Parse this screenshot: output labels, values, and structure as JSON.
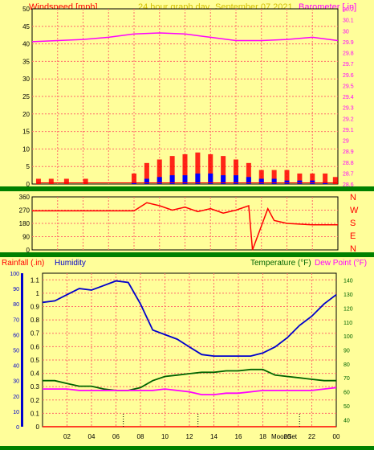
{
  "header": {
    "left_label": "Windspeed [mph]",
    "title": "24 hour graph day",
    "date": "September 07 2021",
    "right_label": "Barometer [.in]"
  },
  "colors": {
    "frame": "#008000",
    "plot_bg": "#fffe9a",
    "grid": "#ff6a6a",
    "wind_gust": "#ff0000",
    "wind_avg": "#0000ff",
    "wind_low": "#008000",
    "barometer": "#ff00ff",
    "direction": "#ff0000",
    "temperature": "#006400",
    "humidity": "#0000cc",
    "dew_point": "#ff00ff",
    "rainfall": "#ff0000",
    "title_gold": "#d4c000"
  },
  "bottom_header": {
    "rain_label": "Rainfall (.in)",
    "humidity_label": "Humidity",
    "temp_label": "Temperature (°F)",
    "dew_label": "Dew Point (°F)"
  },
  "compass": [
    "N",
    "W",
    "S",
    "E",
    "N"
  ],
  "x_markers": [
    "Moon",
    "Set"
  ],
  "chart_data": [
    {
      "type": "line",
      "panel": "wind-and-barometer",
      "xticks": [
        "02",
        "04",
        "06",
        "08",
        "10",
        "12",
        "14",
        "16",
        "18",
        "20",
        "22",
        "00"
      ],
      "ylim_left": [
        0,
        50
      ],
      "yticks_left": [
        "0",
        "5",
        "10",
        "15",
        "20",
        "25",
        "30",
        "35",
        "40",
        "45",
        "50"
      ],
      "ylim_right": [
        28.6,
        30.2
      ],
      "yticks_right": [
        "28.6",
        "28.7",
        "28.8",
        "28.9",
        "29",
        "29.1",
        "29.2",
        "29.3",
        "29.4",
        "29.5",
        "29.6",
        "29.7",
        "29.8",
        "29.9",
        "30",
        "30.1",
        "30.2"
      ],
      "barometer": {
        "hours": [
          0,
          2,
          4,
          6,
          8,
          10,
          12,
          14,
          16,
          18,
          20,
          22,
          24
        ],
        "values": [
          29.9,
          29.91,
          29.92,
          29.94,
          29.97,
          29.98,
          29.97,
          29.94,
          29.91,
          29.91,
          29.92,
          29.94,
          29.91
        ]
      },
      "wind_gust": {
        "hours": [
          0.5,
          1.5,
          2.7,
          4.2,
          8.0,
          9.0,
          10.0,
          11.0,
          12.0,
          13.0,
          14.0,
          15.0,
          16.0,
          17.0,
          18.0,
          19.0,
          20.0,
          21.0,
          22.0,
          23.0,
          23.8
        ],
        "values": [
          1.5,
          1.5,
          1.5,
          1.5,
          3,
          6,
          7,
          8,
          8.5,
          9,
          8.5,
          8,
          7,
          6,
          4,
          4,
          4,
          3,
          3,
          3,
          2
        ]
      },
      "wind_avg": {
        "hours": [
          8.0,
          9.0,
          10.0,
          11.0,
          12.0,
          13.0,
          14.0,
          15.0,
          16.0,
          17.0,
          18.0,
          19.0,
          20.0,
          21.0,
          22.0,
          23.0
        ],
        "values": [
          0.5,
          1.5,
          2,
          2.5,
          2.5,
          3,
          3,
          2.5,
          2.5,
          2,
          1.5,
          1.5,
          1,
          1,
          1,
          0.5
        ]
      }
    },
    {
      "type": "line",
      "panel": "wind-direction",
      "xticks": [
        "02",
        "04",
        "06",
        "08",
        "10",
        "12",
        "14",
        "16",
        "18",
        "20",
        "22",
        "00"
      ],
      "ylim": [
        0,
        360
      ],
      "yticks": [
        "0",
        "90",
        "180",
        "270",
        "360"
      ],
      "hours": [
        0,
        2,
        4,
        6,
        8,
        9.0,
        10.0,
        11.0,
        12.0,
        13.0,
        14.0,
        15.0,
        16.0,
        17.0,
        17.3,
        18.5,
        19.0,
        20.0,
        22.0,
        24
      ],
      "values": [
        265,
        265,
        265,
        265,
        265,
        320,
        300,
        270,
        290,
        260,
        280,
        250,
        270,
        300,
        0,
        280,
        200,
        180,
        170,
        170
      ]
    },
    {
      "type": "line",
      "panel": "temp-humidity-rain",
      "xticks": [
        "02",
        "04",
        "06",
        "08",
        "10",
        "12",
        "14",
        "16",
        "18",
        "20",
        "22",
        "00"
      ],
      "ylim_humidity": [
        0,
        100
      ],
      "yticks_humidity": [
        "0",
        "10",
        "20",
        "30",
        "40",
        "50",
        "60",
        "70",
        "80",
        "90",
        "100"
      ],
      "ylim_rain": [
        0,
        1.15
      ],
      "yticks_rain": [
        "0",
        "0.1",
        "0.2",
        "0.3",
        "0.4",
        "0.5",
        "0.6",
        "0.7",
        "0.8",
        "0.9",
        "1",
        "1.1"
      ],
      "ylim_temp": [
        35,
        145
      ],
      "yticks_temp": [
        "40",
        "50",
        "60",
        "70",
        "80",
        "90",
        "100",
        "110",
        "120",
        "130",
        "140"
      ],
      "humidity": {
        "hours": [
          0,
          1,
          2,
          3,
          4,
          5,
          6,
          7,
          8,
          9,
          10,
          11,
          12,
          13,
          14,
          15,
          16,
          17,
          18,
          19,
          20,
          21,
          22,
          23,
          24
        ],
        "values": [
          81,
          82,
          86,
          90,
          89,
          92,
          95,
          94,
          80,
          63,
          60,
          57,
          52,
          47,
          46,
          46,
          46,
          46,
          48,
          52,
          58,
          66,
          72,
          80,
          86
        ]
      },
      "temperature": {
        "hours": [
          0,
          1,
          2,
          3,
          4,
          5,
          6,
          7,
          8,
          9,
          10,
          11,
          12,
          13,
          14,
          15,
          16,
          17,
          18,
          19,
          20,
          21,
          22,
          23,
          24
        ],
        "values": [
          68,
          68,
          66,
          64,
          64,
          62,
          61,
          61,
          63,
          68,
          71,
          72,
          73,
          74,
          74,
          75,
          75,
          76,
          76,
          72,
          71,
          70,
          69,
          68,
          68
        ]
      },
      "dew_point": {
        "hours": [
          0,
          1,
          2,
          3,
          4,
          5,
          6,
          7,
          8,
          9,
          10,
          11,
          12,
          13,
          14,
          15,
          16,
          17,
          18,
          19,
          20,
          21,
          22,
          23,
          24
        ],
        "values": [
          62,
          62,
          62,
          61,
          61,
          61,
          61,
          61,
          61,
          61,
          62,
          61,
          60,
          58,
          58,
          59,
          59,
          60,
          61,
          61,
          61,
          61,
          61,
          62,
          63
        ]
      },
      "rainfall": {
        "hours": [
          0,
          24
        ],
        "values": [
          0,
          0
        ]
      }
    }
  ]
}
